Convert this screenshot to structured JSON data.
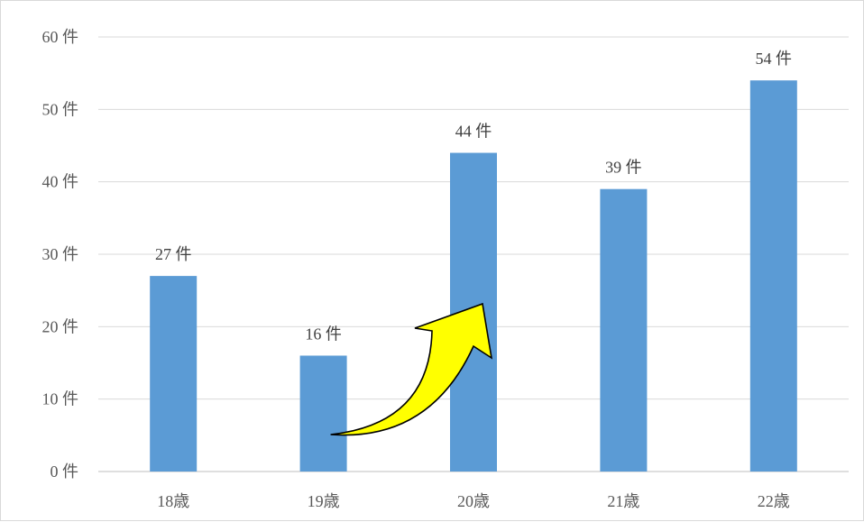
{
  "chart_data": {
    "type": "bar",
    "categories": [
      "18歳",
      "19歳",
      "20歳",
      "21歳",
      "22歳"
    ],
    "values": [
      27,
      16,
      44,
      39,
      54
    ],
    "data_labels": [
      "27 件",
      "16 件",
      "44 件",
      "39 件",
      "54 件"
    ],
    "y_ticks": [
      0,
      10,
      20,
      30,
      40,
      50,
      60
    ],
    "y_tick_labels": [
      "0 件",
      "10 件",
      "20 件",
      "30 件",
      "40 件",
      "50 件",
      "60 件"
    ],
    "ylim": [
      0,
      60
    ],
    "grid": true,
    "legend": "none",
    "colors": {
      "bar": "#5b9bd5",
      "grid": "#d9d9d9",
      "axis": "#bfbfbf",
      "arrow_fill": "#ffff00",
      "arrow_stroke": "#000000"
    },
    "annotation": {
      "type": "curved-arrow",
      "from_category": "19歳",
      "to_category": "20歳"
    }
  }
}
